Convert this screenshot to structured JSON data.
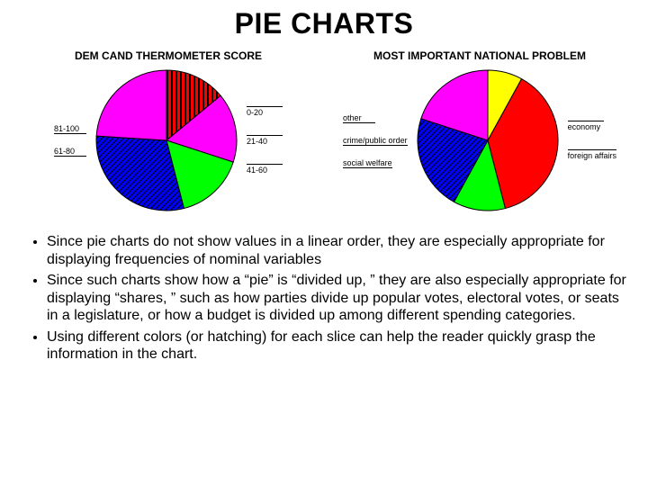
{
  "title": "PIE CHARTS",
  "chart_left": {
    "type": "pie",
    "title": "DEM CAND THERMOMETER SCORE",
    "radius": 78,
    "size": 170,
    "slices": [
      {
        "label": "81-100",
        "value": 14,
        "fill": "#ff0000",
        "pattern": "vstripe",
        "patternColor": "#000000"
      },
      {
        "label": "0-20",
        "value": 16,
        "fill": "#ff00ff",
        "pattern": "none"
      },
      {
        "label": "21-40",
        "value": 16,
        "fill": "#00ff00",
        "pattern": "none"
      },
      {
        "label": "41-60",
        "value": 30,
        "fill": "#0000ff",
        "pattern": "hatch",
        "patternColor": "#000000"
      },
      {
        "label": "61-80",
        "value": 24,
        "fill": "#ff00ff",
        "pattern": "none"
      }
    ],
    "labels_left": [
      "81-100",
      "61-80"
    ],
    "labels_right": [
      "0-20",
      "21-40",
      "41-60"
    ],
    "stroke": "#000000",
    "stroke_width": 1
  },
  "chart_right": {
    "type": "pie",
    "title": "MOST IMPORTANT NATIONAL PROBLEM",
    "radius": 78,
    "size": 170,
    "slices": [
      {
        "label": "other",
        "value": 8,
        "fill": "#ffff00",
        "pattern": "none"
      },
      {
        "label": "economy",
        "value": 38,
        "fill": "#ff0000",
        "pattern": "none"
      },
      {
        "label": "foreign affairs",
        "value": 12,
        "fill": "#00ff00",
        "pattern": "none"
      },
      {
        "label": "social welfare",
        "value": 22,
        "fill": "#0000ff",
        "pattern": "hatch",
        "patternColor": "#000000"
      },
      {
        "label": "crime/public order",
        "value": 20,
        "fill": "#ff00ff",
        "pattern": "none"
      }
    ],
    "labels_left": [
      "other",
      "crime/public order",
      "social welfare"
    ],
    "labels_right": [
      "economy",
      "foreign affairs"
    ],
    "stroke": "#000000",
    "stroke_width": 1
  },
  "bullets": [
    "Since pie charts do not show values in a linear order, they are especially appropriate for displaying frequencies of nominal variables",
    "Since such charts show how a “pie” is “divided up, ” they are also especially appropriate for displaying “shares, ” such as how parties divide up popular votes, electoral votes, or seats in a legislature, or how a budget is divided up among different spending categories.",
    "Using different colors (or hatching) for each slice can help the reader quickly grasp the information in the chart."
  ]
}
